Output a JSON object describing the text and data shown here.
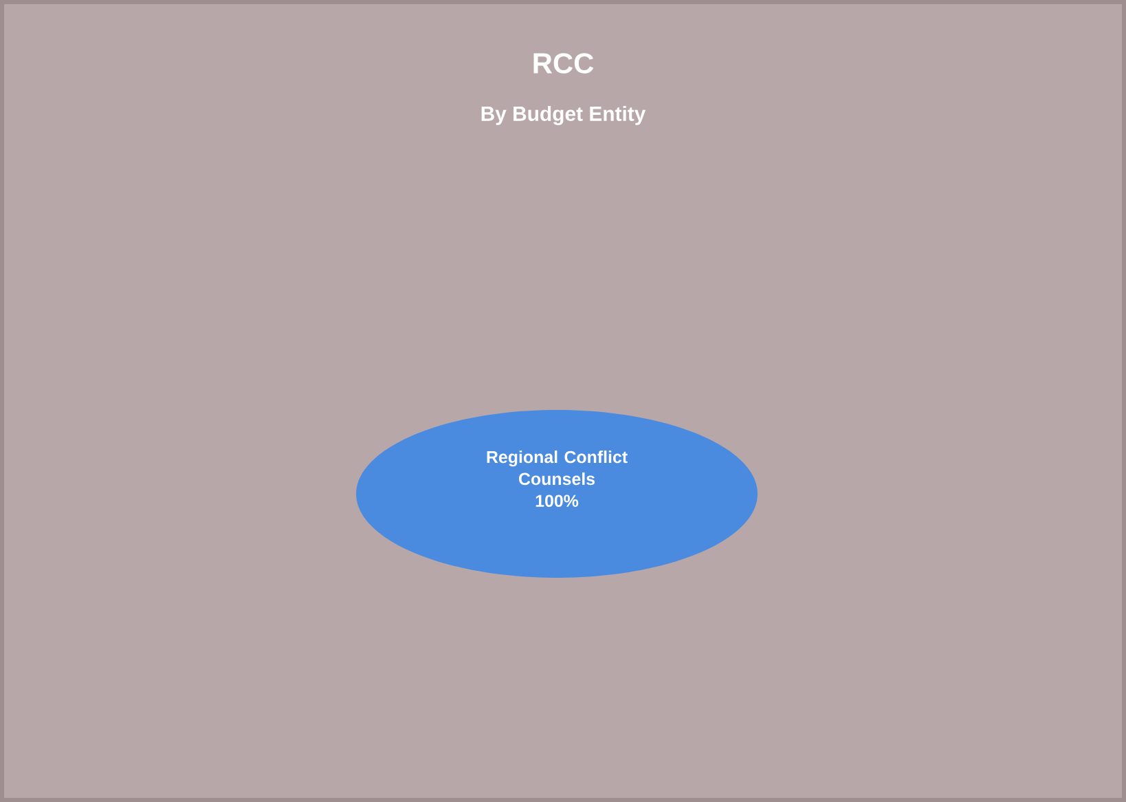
{
  "chart_data": {
    "type": "pie",
    "title": "RCC",
    "subtitle": "By Budget Entity",
    "categories": [
      "Regional Conflict Counsels"
    ],
    "values": [
      100
    ],
    "colors": [
      "#4a8be0"
    ],
    "value_labels": [
      "100%"
    ]
  }
}
